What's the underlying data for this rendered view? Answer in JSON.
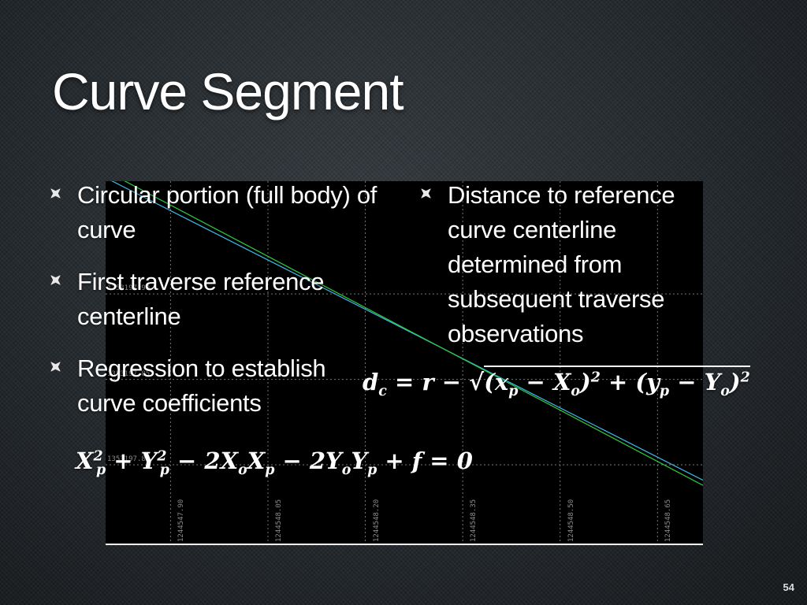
{
  "slide": {
    "title": "Curve Segment",
    "page_number": "54"
  },
  "left_bullets": [
    {
      "text": "Circular portion (full body) of curve"
    },
    {
      "text": "First traverse reference centerline"
    },
    {
      "text": "Regression to establish curve coefficients"
    }
  ],
  "right_bullets": [
    {
      "text": "Distance to reference curve centerline determined from subsequent traverse observations"
    }
  ],
  "equations": {
    "distance": {
      "lhs": "d",
      "lhs_sub": "c",
      "eq": " = r − √",
      "term1": "(x",
      "t1_sub": "p",
      "t1_mid": " − X",
      "t1_sub2": "o",
      "t1_close": ")",
      "t1_sup": "2",
      "plus": " + ",
      "term2": "(y",
      "t2_sub": "p",
      "t2_mid": " − Y",
      "t2_sub2": "o",
      "t2_close": ")",
      "t2_sup": "2"
    },
    "regression": {
      "a": "X",
      "a_sub": "p",
      "a_sup": "2",
      "b": " + Y",
      "b_sub": "p",
      "b_sup": "2",
      "c": " − 2X",
      "c_sub": "o",
      "c2": "X",
      "c2_sub": "p",
      "d": " − 2Y",
      "d_sub": "o",
      "d2": "Y",
      "d2_sub": "p",
      "e": " + f = 0"
    }
  },
  "chart_data": {
    "type": "line",
    "y_tick_labels": [
      "1353197.90",
      "1353197.85",
      "1353197.80"
    ],
    "x_tick_labels": [
      "1244547.90",
      "1244548.05",
      "1244548.20",
      "1244548.35",
      "1244548.50",
      "1244548.65"
    ],
    "series": [
      {
        "color": "#3cbbe8",
        "x": [
          1244547.8,
          1244548.72
        ],
        "y": [
          1353197.968,
          1353197.791
        ]
      },
      {
        "color": "#2ecc40",
        "x": [
          1244547.8,
          1244548.72
        ],
        "y": [
          1353197.972,
          1353197.788
        ]
      }
    ],
    "xlim": [
      1244547.8,
      1244548.72
    ],
    "ylim": [
      1353197.753,
      1353197.966
    ],
    "grid": true,
    "colors": {
      "background": "#000000",
      "grid": "#777777",
      "axis": "#ffffff"
    }
  }
}
